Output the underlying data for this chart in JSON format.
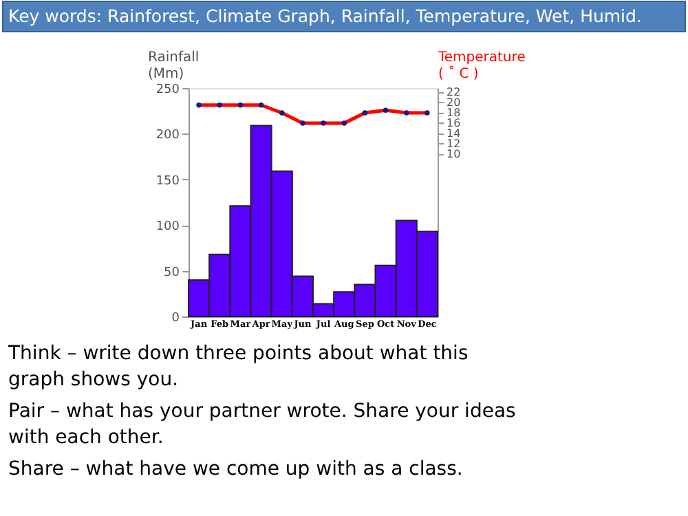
{
  "chart_data": {
    "type": "bar",
    "title": "Key words: Rainforest, Climate Graph, Rainfall, Temperature, Wet, Humid.",
    "ylabel": "Rainfall (Mm)",
    "y2label": "Temperature ( ˚ C )",
    "categories": [
      "Jan",
      "Feb",
      "Mar",
      "Apr",
      "May",
      "Jun",
      "Jul",
      "Aug",
      "Sep",
      "Oct",
      "Nov",
      "Dec"
    ],
    "series": [
      {
        "color": "#5a00ff",
        "values": [
          40,
          68,
          121,
          209,
          159,
          44,
          14,
          27,
          35,
          56,
          105,
          93
        ]
      },
      {
        "type": "line",
        "axis": "y2",
        "color": "#ff0000",
        "marker": "circle",
        "values": [
          19.5,
          19.5,
          19.5,
          19.5,
          18,
          16,
          16,
          16,
          18,
          18.5,
          18,
          18
        ]
      }
    ],
    "ylim": [
      0,
      250
    ],
    "yticks": [
      0,
      50,
      100,
      150,
      200,
      250
    ],
    "y2lim": [
      -21.5,
      22.8
    ],
    "y2ticks": [
      10,
      12,
      14,
      16,
      18,
      20,
      22
    ],
    "grid": false,
    "annotations": [
      "Think – write down three points about what this graph shows you.",
      "Pair – what has your partner wrote. Share your ideas with each other.",
      "Share – what have we come up with as a class."
    ]
  }
}
